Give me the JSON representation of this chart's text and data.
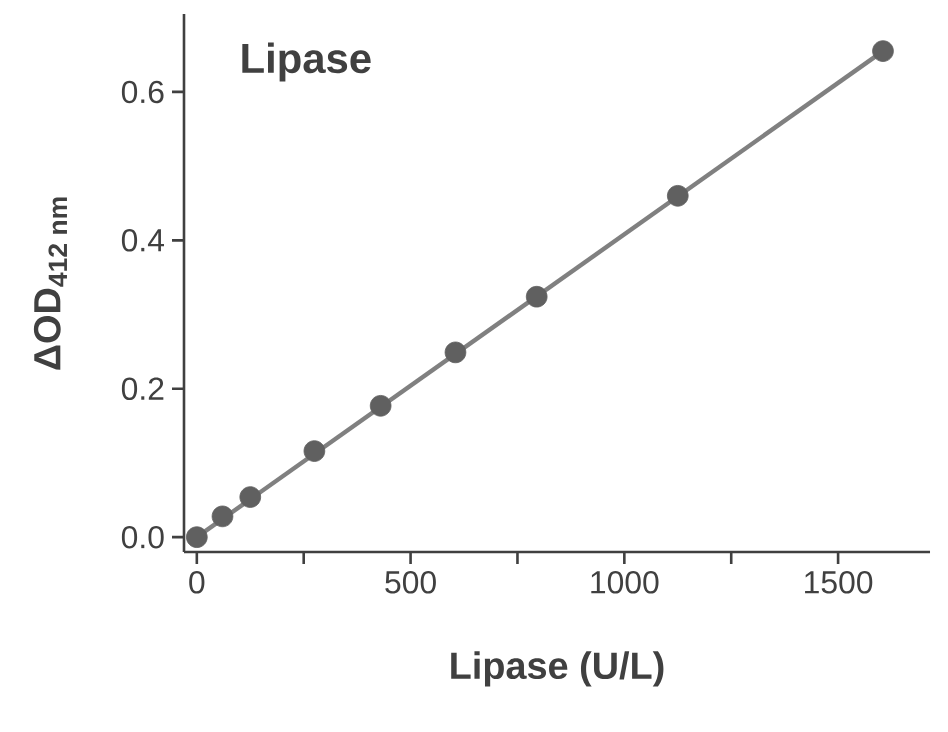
{
  "chart_data": {
    "type": "scatter",
    "title": "Lipase",
    "xlabel": "Lipase (U/L)",
    "ylabel": "ΔOD$_{412 nm}$",
    "series": [
      {
        "marker": "circle",
        "color": "#606060",
        "x": [
          0,
          60,
          125,
          275,
          430,
          605,
          795,
          1125,
          1605
        ],
        "values": [
          0,
          0.028,
          0.054,
          0.116,
          0.177,
          0.249,
          0.324,
          0.46,
          0.655
        ]
      },
      {
        "type": "line",
        "marker": "none",
        "color": "#808080",
        "x": [
          0,
          1605
        ],
        "values": [
          0,
          0.655
        ]
      }
    ],
    "line_style": "solid",
    "xlim": [
      -30,
      1715
    ],
    "ylim": [
      -0.02,
      0.705
    ],
    "xticks": [
      0,
      {
        "value": 250,
        "label": null
      },
      500,
      {
        "value": 750,
        "label": null
      },
      1000,
      {
        "value": 1250,
        "label": null
      },
      1500
    ],
    "yticks": [
      {
        "value": 0,
        "label": "0.0"
      },
      0.2,
      0.4,
      0.6
    ]
  }
}
